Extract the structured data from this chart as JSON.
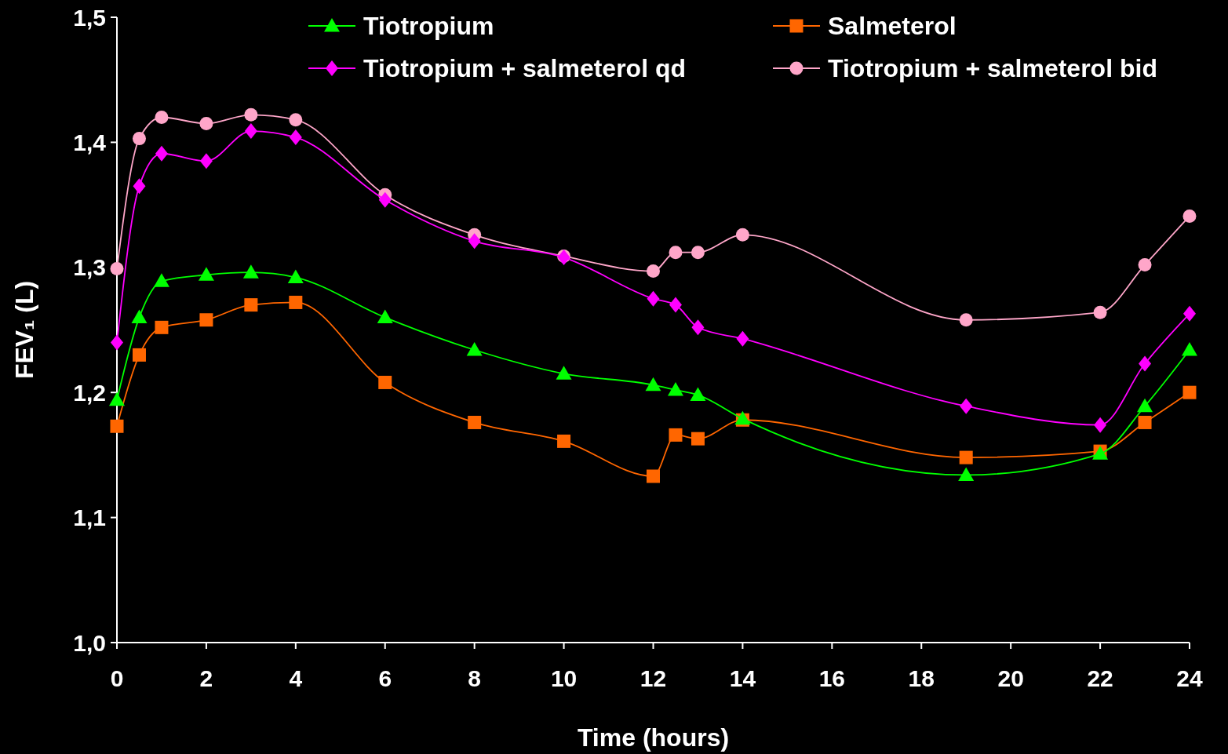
{
  "chart_data": {
    "type": "line",
    "xlabel": "Time (hours)",
    "ylabel": "FEV₁ (L)",
    "x": [
      0,
      0.5,
      1,
      2,
      3,
      4,
      6,
      8,
      10,
      12,
      12.5,
      13,
      14,
      19,
      22,
      23,
      24
    ],
    "xlim": [
      0,
      24
    ],
    "xticks": [
      0,
      2,
      4,
      6,
      8,
      10,
      12,
      14,
      16,
      18,
      20,
      22,
      24
    ],
    "ylim": [
      1.0,
      1.5
    ],
    "yticks": [
      {
        "value": 1.0,
        "label": "1,0"
      },
      {
        "value": 1.1,
        "label": "1,1"
      },
      {
        "value": 1.2,
        "label": "1,2"
      },
      {
        "value": 1.3,
        "label": "1,3"
      },
      {
        "value": 1.4,
        "label": "1,4"
      },
      {
        "value": 1.5,
        "label": "1,5"
      }
    ],
    "grid": false,
    "legend": "top right",
    "line_style": "solid",
    "series": [
      {
        "name": "Tiotropium",
        "color": "#00ff00",
        "marker": "triangle",
        "values": [
          1.194,
          1.26,
          1.289,
          1.294,
          1.296,
          1.292,
          1.26,
          1.234,
          1.215,
          1.206,
          1.202,
          1.198,
          1.179,
          1.134,
          1.151,
          1.189,
          1.234
        ]
      },
      {
        "name": "Salmeterol",
        "color": "#ff6600",
        "marker": "square",
        "values": [
          1.173,
          1.23,
          1.252,
          1.258,
          1.27,
          1.272,
          1.208,
          1.176,
          1.161,
          1.133,
          1.166,
          1.163,
          1.178,
          1.148,
          1.153,
          1.176,
          1.2
        ]
      },
      {
        "name": "Tiotropium + salmeterol qd",
        "color": "#ff00ff",
        "marker": "diamond",
        "values": [
          1.24,
          1.365,
          1.391,
          1.385,
          1.409,
          1.404,
          1.354,
          1.321,
          1.308,
          1.275,
          1.27,
          1.252,
          1.243,
          1.189,
          1.174,
          1.223,
          1.263
        ]
      },
      {
        "name": "Tiotropium + salmeterol bid",
        "color": "#ffa6c9",
        "marker": "circle",
        "values": [
          1.299,
          1.403,
          1.42,
          1.415,
          1.422,
          1.418,
          1.358,
          1.326,
          1.309,
          1.297,
          1.312,
          1.312,
          1.326,
          1.258,
          1.264,
          1.302,
          1.341
        ]
      }
    ]
  }
}
